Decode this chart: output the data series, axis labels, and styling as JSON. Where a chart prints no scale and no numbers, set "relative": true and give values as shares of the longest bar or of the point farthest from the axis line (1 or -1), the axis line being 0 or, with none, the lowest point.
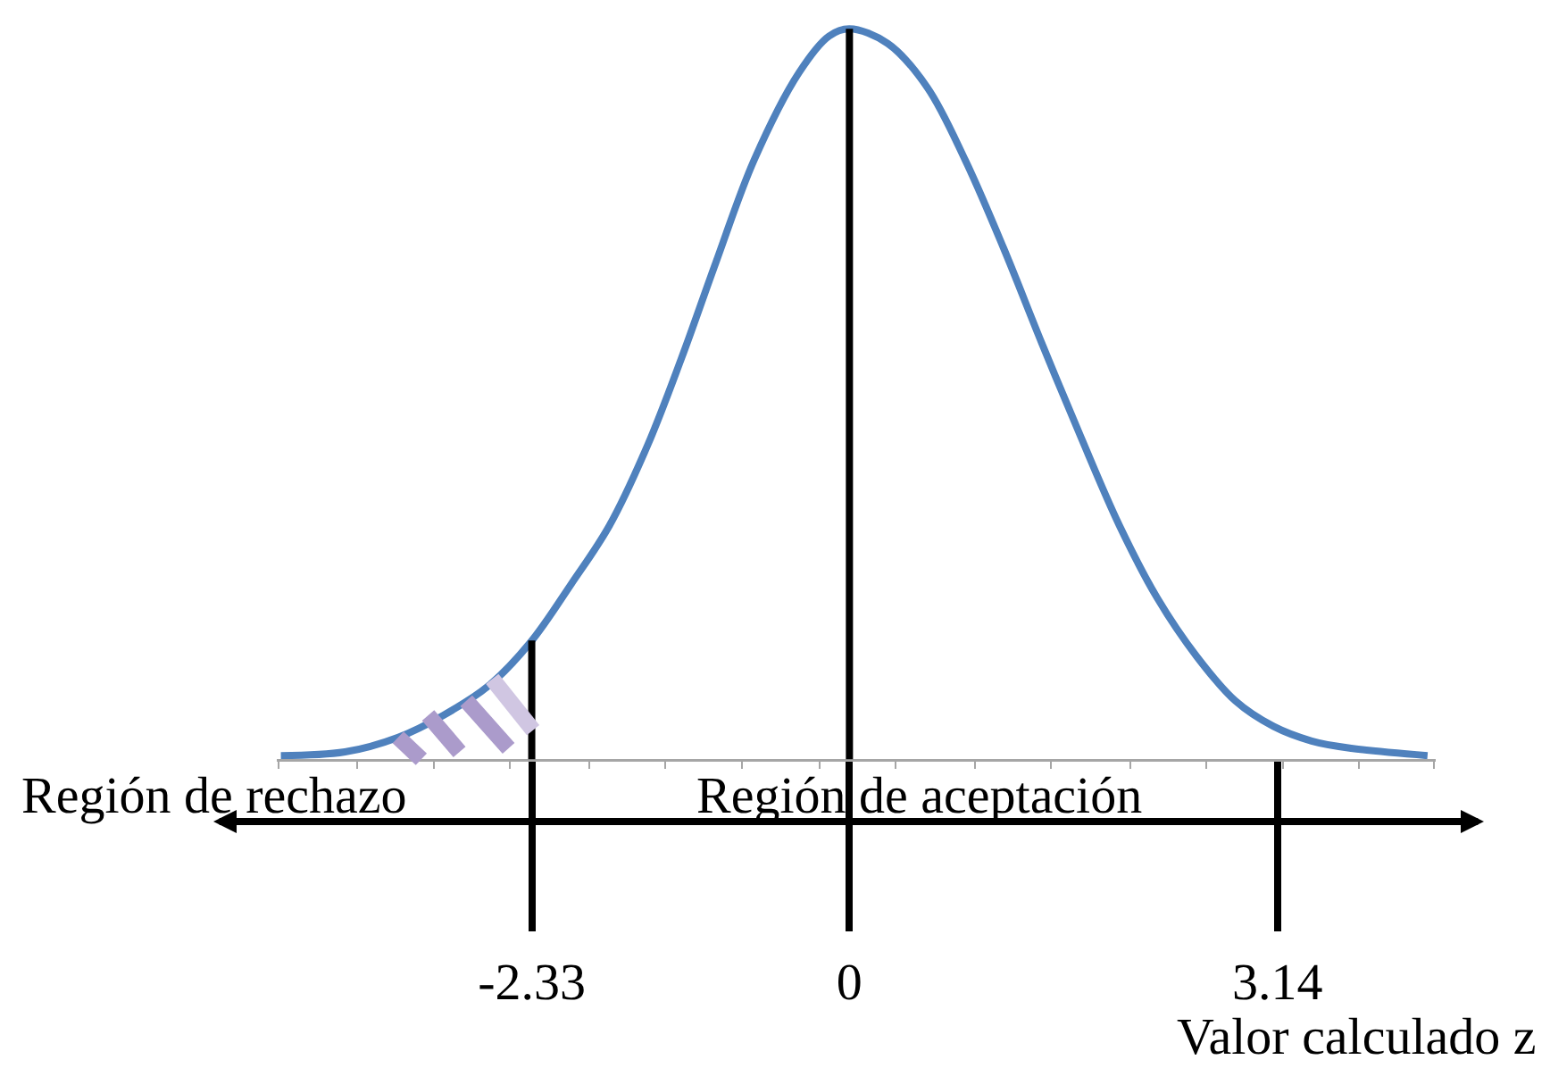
{
  "chart_data": {
    "type": "line",
    "relative": true,
    "xlabel": "Valor calculado z",
    "x": [
      -4.17,
      -3.7,
      -3.31,
      -2.98,
      -2.65,
      -2.34,
      -2.04,
      -1.76,
      -1.48,
      -1.23,
      -0.98,
      -0.7,
      -0.37,
      -0.15,
      0,
      0.28,
      0.57,
      0.85,
      1.13,
      1.41,
      1.7,
      1.98,
      2.26,
      2.55,
      2.83,
      3.11,
      3.39,
      3.68,
      4.24
    ],
    "series": [
      {
        "color": "#4f81bd",
        "values": [
          0.005,
          0.01,
          0.03,
          0.06,
          0.1,
          0.16,
          0.24,
          0.32,
          0.43,
          0.55,
          0.68,
          0.82,
          0.94,
          0.99,
          1,
          0.98,
          0.92,
          0.82,
          0.7,
          0.57,
          0.44,
          0.32,
          0.22,
          0.14,
          0.08,
          0.045,
          0.025,
          0.015,
          0.005
        ]
      }
    ],
    "xlim": [
      -4.2,
      4.3
    ],
    "xticks": [
      {
        "value": -4.19,
        "label": null
      },
      {
        "value": -3.61,
        "label": null
      },
      {
        "value": -3.05,
        "label": null
      },
      {
        "value": -2.49,
        "label": null
      },
      -2.33,
      {
        "value": -1.91,
        "label": null
      },
      {
        "value": -1.35,
        "label": null
      },
      {
        "value": -0.79,
        "label": null
      },
      {
        "value": -0.22,
        "label": null
      },
      0,
      {
        "value": 0.34,
        "label": null
      },
      {
        "value": 0.92,
        "label": null
      },
      {
        "value": 1.48,
        "label": null
      },
      {
        "value": 2.06,
        "label": null
      },
      {
        "value": 2.62,
        "label": null
      },
      3.14,
      {
        "value": 3.18,
        "label": null
      },
      {
        "value": 3.74,
        "label": null
      },
      {
        "value": 4.29,
        "label": null
      }
    ],
    "ref_lines": [
      {
        "axis": "x",
        "value": -2.33,
        "color": "#000000"
      },
      {
        "axis": "x",
        "value": 0,
        "color": "#000000"
      }
    ],
    "annotations": [
      "Región de rechazo",
      "Región de aceptación"
    ]
  }
}
